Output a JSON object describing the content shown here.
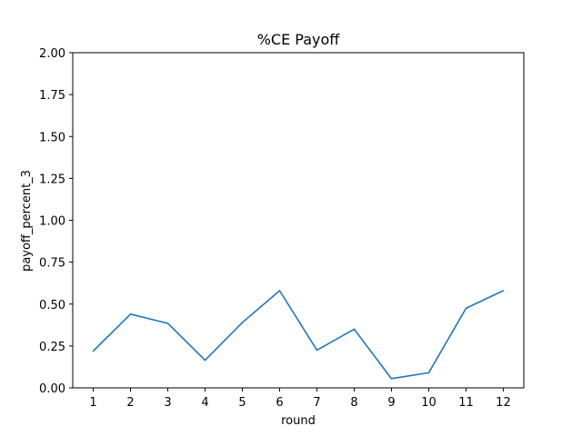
{
  "chart_data": {
    "type": "line",
    "title": "%CE Payoff",
    "xlabel": "round",
    "ylabel": "payoff_percent_3",
    "x": [
      1,
      2,
      3,
      4,
      5,
      6,
      7,
      8,
      9,
      10,
      11,
      12
    ],
    "series": [
      {
        "values": [
          0.22,
          0.44,
          0.385,
          0.165,
          0.39,
          0.58,
          0.225,
          0.35,
          0.055,
          0.09,
          0.475,
          0.58
        ],
        "color": "#1f77b4"
      }
    ],
    "xlim": [
      0.45,
      12.55
    ],
    "ylim": [
      0,
      2.0
    ],
    "xticks": [
      "1",
      "2",
      "3",
      "4",
      "5",
      "6",
      "7",
      "8",
      "9",
      "10",
      "11",
      "12"
    ],
    "yticks": [
      "0.00",
      "0.25",
      "0.50",
      "0.75",
      "1.00",
      "1.25",
      "1.50",
      "1.75",
      "2.00"
    ],
    "grid": false,
    "legend": "none"
  }
}
